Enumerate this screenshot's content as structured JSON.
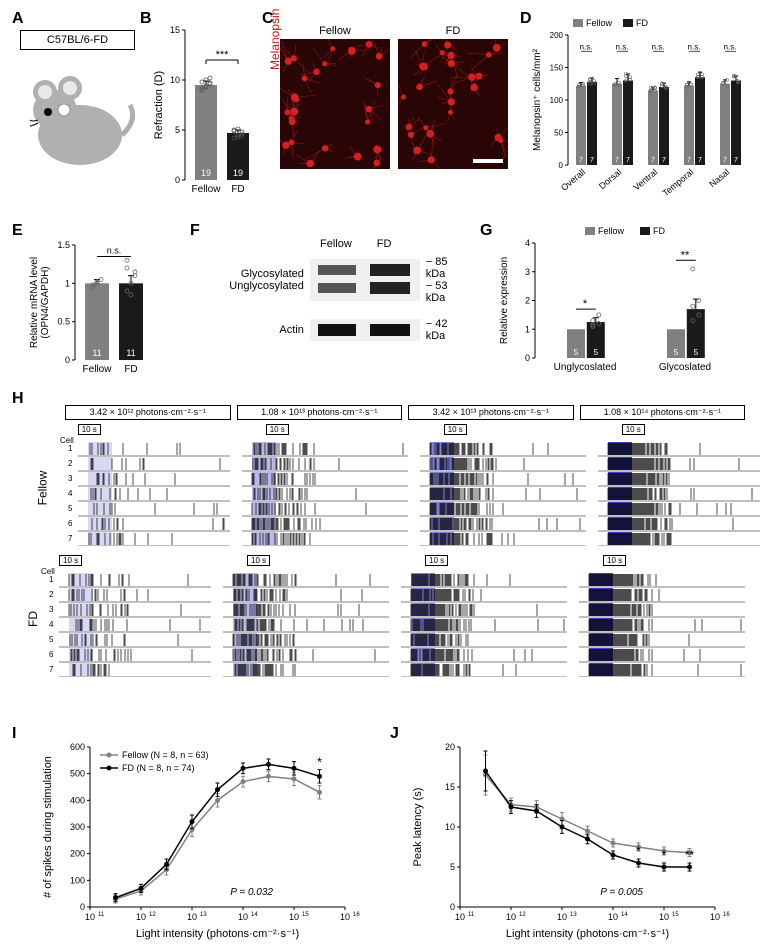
{
  "panels": {
    "A": {
      "label": "A",
      "box_text": "C57BL/6-FD"
    },
    "B": {
      "label": "B",
      "title": "Refraction (D)",
      "cats": [
        "Fellow",
        "FD"
      ],
      "values": [
        9.5,
        4.7
      ],
      "err": [
        0.4,
        0.3
      ],
      "n": [
        "19",
        "19"
      ],
      "sig": "***",
      "ylim": [
        0,
        15
      ],
      "yticks": [
        0,
        5,
        10,
        15
      ],
      "colors": [
        "#808080",
        "#1a1a1a"
      ],
      "scatter": [
        [
          9.2,
          9.4,
          9.6,
          9.8,
          10.0,
          10.2,
          9.0,
          9.3,
          9.7
        ],
        [
          4.2,
          4.5,
          4.8,
          5.0,
          4.3,
          4.6,
          4.9,
          5.1,
          4.4
        ]
      ]
    },
    "C": {
      "label": "C",
      "cols": [
        "Fellow",
        "FD"
      ],
      "side_label": "Melanopsin",
      "img_color": "#2a0505",
      "dot_color": "#d42020"
    },
    "D": {
      "label": "D",
      "ytitle": "Melanopsin⁺ cells/mm²",
      "ylim": [
        0,
        200
      ],
      "yticks": [
        0,
        50,
        100,
        150,
        200
      ],
      "groups": [
        "Overall",
        "Dorsal",
        "Ventral",
        "Temporal",
        "Nasal"
      ],
      "fellow": [
        122,
        125,
        115,
        122,
        125
      ],
      "fd": [
        128,
        130,
        120,
        135,
        130
      ],
      "err_f": [
        5,
        8,
        5,
        6,
        6
      ],
      "err_d": [
        6,
        10,
        6,
        8,
        7
      ],
      "n": "7",
      "sig": [
        "n.s.",
        "n.s.",
        "n.s.",
        "n.s.",
        "n.s."
      ],
      "colors": [
        "#808080",
        "#1a1a1a"
      ],
      "legend": [
        "Fellow",
        "FD"
      ]
    },
    "E": {
      "label": "E",
      "ytitle": "Relative mRNA level\n(OPN4/GAPDH)",
      "cats": [
        "Fellow",
        "FD"
      ],
      "values": [
        1.0,
        1.0
      ],
      "err": [
        0.05,
        0.1
      ],
      "n": [
        "11",
        "11"
      ],
      "sig": "n.s.",
      "ylim": [
        0,
        1.5
      ],
      "yticks": [
        0,
        0.5,
        1.0,
        1.5
      ],
      "colors": [
        "#808080",
        "#1a1a1a"
      ],
      "scatter": [
        [
          0.95,
          1.0,
          1.05,
          0.98,
          1.02
        ],
        [
          0.9,
          1.0,
          1.1,
          1.2,
          0.85,
          1.15,
          1.3
        ]
      ]
    },
    "F": {
      "label": "F",
      "cols": [
        "Fellow",
        "FD"
      ],
      "rows": [
        "Glycosylated",
        "Unglycosylated",
        "Actin"
      ],
      "kda": [
        "85 kDa",
        "53 kDa",
        "42 kDa"
      ]
    },
    "G": {
      "label": "G",
      "ytitle": "Relative expression",
      "ylim": [
        0,
        4
      ],
      "yticks": [
        0,
        1,
        2,
        3,
        4
      ],
      "groups": [
        "Unglycoslated",
        "Glycoslated"
      ],
      "fellow": [
        1.0,
        1.0
      ],
      "fd": [
        1.25,
        1.7
      ],
      "err_f": [
        0,
        0
      ],
      "err_d": [
        0.15,
        0.35
      ],
      "n": "5",
      "sig": [
        "*",
        "**"
      ],
      "colors": [
        "#808080",
        "#1a1a1a"
      ],
      "legend": [
        "Fellow",
        "FD"
      ],
      "scatter_fd": [
        [
          1.1,
          1.2,
          1.3,
          1.5,
          1.15
        ],
        [
          1.3,
          1.5,
          1.8,
          2.0,
          3.1
        ]
      ]
    },
    "H": {
      "label": "H",
      "intensities": [
        "3.42 × 10¹² photons·cm⁻²·s⁻¹",
        "1.08 × 10¹³ photons·cm⁻²·s⁻¹",
        "3.42 × 10¹³ photons·cm⁻²·s⁻¹",
        "1.08 × 10¹⁴ photons·cm⁻²·s⁻¹"
      ],
      "row_labels": [
        "Fellow",
        "FD"
      ],
      "cells": 7,
      "stim_label": "10 s",
      "cell_label": "Cell",
      "stim_colors": [
        "#d8d8f5",
        "#b8b8ea",
        "#8080d8",
        "#4040c0"
      ]
    },
    "I": {
      "label": "I",
      "xtitle": "Light intensity (photons·cm⁻²·s⁻¹)",
      "ytitle": "# of spikes during stimulation",
      "xlim": [
        11,
        16
      ],
      "ylim": [
        0,
        600
      ],
      "yticks": [
        0,
        100,
        200,
        300,
        400,
        500,
        600
      ],
      "xticks": [
        11,
        12,
        13,
        14,
        15,
        16
      ],
      "legend": [
        "Fellow (N = 8, n = 63)",
        "FD (N = 8, n = 74)"
      ],
      "colors": [
        "#808080",
        "#000000"
      ],
      "x": [
        11.5,
        12,
        12.5,
        13,
        13.5,
        14,
        14.5,
        15,
        15.5
      ],
      "fellow": [
        30,
        60,
        140,
        290,
        400,
        470,
        490,
        480,
        430
      ],
      "fd": [
        35,
        70,
        160,
        320,
        440,
        520,
        535,
        520,
        490
      ],
      "err_f": [
        15,
        15,
        20,
        25,
        25,
        20,
        20,
        25,
        25
      ],
      "err_d": [
        15,
        15,
        20,
        25,
        25,
        20,
        20,
        25,
        25
      ],
      "p": "P = 0.032",
      "sig_x": 15.5,
      "sig": "*"
    },
    "J": {
      "label": "J",
      "xtitle": "Light intensity (photons·cm⁻²·s⁻¹)",
      "ytitle": "Peak latency (s)",
      "xlim": [
        11,
        16
      ],
      "ylim": [
        0,
        20
      ],
      "yticks": [
        0,
        5,
        10,
        15,
        20
      ],
      "xticks": [
        11,
        12,
        13,
        14,
        15,
        16
      ],
      "colors": [
        "#808080",
        "#000000"
      ],
      "x": [
        11.5,
        12,
        12.5,
        13,
        13.5,
        14,
        14.5,
        15,
        15.5
      ],
      "fellow": [
        16.5,
        12.8,
        12.5,
        11,
        9.5,
        8,
        7.5,
        7,
        6.8
      ],
      "fd": [
        17,
        12.5,
        12,
        10,
        8.5,
        6.5,
        5.5,
        5,
        5
      ],
      "err_f": [
        2.5,
        0.8,
        0.8,
        0.8,
        0.6,
        0.5,
        0.5,
        0.5,
        0.5
      ],
      "err_d": [
        2.5,
        0.8,
        0.8,
        0.8,
        0.6,
        0.5,
        0.5,
        0.5,
        0.5
      ],
      "p": "P = 0.005",
      "sigs": [
        {
          "x": 14.5,
          "t": "*"
        },
        {
          "x": 15,
          "t": "*"
        },
        {
          "x": 15.5,
          "t": "**"
        }
      ]
    }
  },
  "layout": {
    "row1_y": 10,
    "row2_y": 230,
    "rowH_y": 395,
    "rowIJ_y": 730
  }
}
